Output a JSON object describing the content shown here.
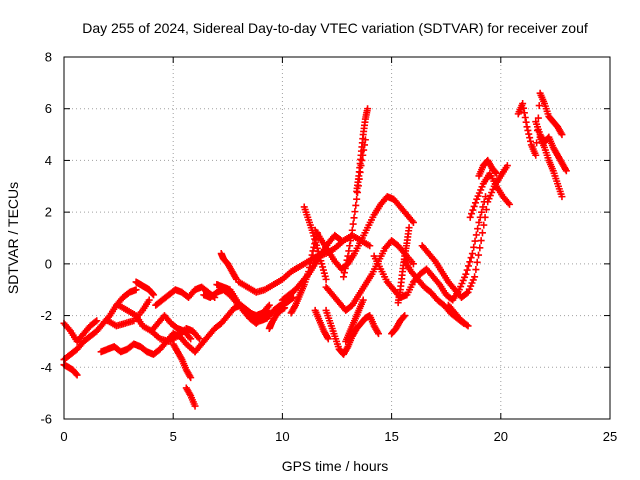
{
  "chart_data": {
    "type": "scatter",
    "title": "Day 255 of 2024, Sidereal Day-to-day VTEC variation (SDTVAR) for receiver zouf",
    "xlabel": "GPS time / hours",
    "ylabel": "SDTVAR / TECUs",
    "xlim": [
      0,
      25
    ],
    "ylim": [
      -6,
      8
    ],
    "xticks": [
      0,
      5,
      10,
      15,
      20,
      25
    ],
    "yticks": [
      -6,
      -4,
      -2,
      0,
      2,
      4,
      6,
      8
    ],
    "grid": true,
    "marker": "+",
    "color": "#ff0000",
    "series": [
      {
        "name": "trace-1",
        "x": [
          0,
          0.3,
          0.6,
          0.9,
          1.2,
          1.5
        ],
        "y": [
          -2.3,
          -2.6,
          -3.0,
          -2.7,
          -2.4,
          -2.2
        ]
      },
      {
        "name": "trace-2",
        "x": [
          0,
          0.3,
          0.6,
          0.9,
          1.2,
          1.5,
          1.8,
          2.1,
          2.4,
          2.7,
          3.0,
          3.3
        ],
        "y": [
          -3.7,
          -3.5,
          -3.3,
          -3.0,
          -2.8,
          -2.6,
          -2.3,
          -2.0,
          -1.6,
          -1.3,
          -1.1,
          -1.0
        ]
      },
      {
        "name": "trace-3",
        "x": [
          0,
          0.2,
          0.4,
          0.6
        ],
        "y": [
          -3.9,
          -4.0,
          -4.1,
          -4.3
        ]
      },
      {
        "name": "trace-4",
        "x": [
          1.7,
          2.0,
          2.3,
          2.6,
          2.9,
          3.2,
          3.5,
          3.8,
          4.1,
          4.4,
          4.7,
          5.0,
          5.3,
          5.6,
          6.0
        ],
        "y": [
          -3.4,
          -3.3,
          -3.2,
          -3.4,
          -3.3,
          -3.1,
          -3.2,
          -3.4,
          -3.5,
          -3.3,
          -3.0,
          -2.7,
          -2.8,
          -3.1,
          -3.4
        ]
      },
      {
        "name": "trace-5",
        "x": [
          2.0,
          2.4,
          2.8,
          3.2,
          3.6,
          3.9
        ],
        "y": [
          -2.2,
          -2.4,
          -2.3,
          -2.2,
          -1.8,
          -1.4
        ]
      },
      {
        "name": "trace-6",
        "x": [
          2.5,
          2.9,
          3.3,
          3.6,
          4.0,
          4.4,
          4.8,
          5.2,
          5.6,
          5.9,
          6.2
        ],
        "y": [
          -1.6,
          -1.8,
          -2.0,
          -2.4,
          -2.6,
          -2.9,
          -3.0,
          -2.8,
          -2.5,
          -2.6,
          -2.9
        ]
      },
      {
        "name": "trace-7",
        "x": [
          3.3,
          3.5,
          3.7,
          3.9,
          4.1
        ],
        "y": [
          -0.7,
          -0.8,
          -0.9,
          -1.0,
          -1.2
        ]
      },
      {
        "name": "trace-8",
        "x": [
          4.0,
          4.3,
          4.6,
          4.9,
          5.2,
          5.5,
          5.8
        ],
        "y": [
          -2.6,
          -2.3,
          -2.0,
          -2.3,
          -2.5,
          -2.6,
          -2.9
        ]
      },
      {
        "name": "trace-9",
        "x": [
          4.2,
          4.5,
          4.8,
          5.1,
          5.4,
          5.7,
          6.0,
          6.3,
          6.6,
          6.9
        ],
        "y": [
          -1.6,
          -1.4,
          -1.2,
          -1.0,
          -1.1,
          -1.3,
          -1.0,
          -0.9,
          -1.1,
          -1.3
        ]
      },
      {
        "name": "trace-10",
        "x": [
          5.0,
          5.2,
          5.4,
          5.6,
          5.8
        ],
        "y": [
          -3.1,
          -3.4,
          -3.7,
          -4.1,
          -4.4
        ]
      },
      {
        "name": "trace-11",
        "x": [
          5.6,
          5.8,
          6.0
        ],
        "y": [
          -4.8,
          -5.1,
          -5.5
        ]
      },
      {
        "name": "trace-12",
        "x": [
          6.0,
          6.3,
          6.6,
          6.9,
          7.2,
          7.5,
          7.8,
          8.1,
          8.4,
          8.7,
          9.0,
          9.3,
          9.6,
          9.9,
          10.2,
          10.5
        ],
        "y": [
          -3.4,
          -3.1,
          -2.8,
          -2.5,
          -2.3,
          -2.0,
          -1.7,
          -1.6,
          -1.8,
          -2.0,
          -2.2,
          -2.1,
          -1.8,
          -1.6,
          -1.5,
          -1.3
        ]
      },
      {
        "name": "trace-13",
        "x": [
          6.4,
          6.7,
          7.0,
          7.3,
          7.6,
          7.9,
          8.2,
          8.5,
          8.8,
          9.1,
          9.4
        ],
        "y": [
          -1.2,
          -1.3,
          -1.1,
          -1.0,
          -1.2,
          -1.5,
          -1.7,
          -1.9,
          -2.0,
          -1.9,
          -1.6
        ]
      },
      {
        "name": "trace-14",
        "x": [
          7.0,
          7.3,
          7.6,
          7.9,
          8.2,
          8.5,
          8.8,
          9.1,
          9.4
        ],
        "y": [
          -0.8,
          -0.9,
          -1.0,
          -1.4,
          -1.8,
          -2.1,
          -2.3,
          -2.1,
          -1.9
        ]
      },
      {
        "name": "trace-15",
        "x": [
          7.2,
          7.3,
          7.5,
          7.7,
          7.9
        ],
        "y": [
          0.4,
          0.2,
          0.0,
          -0.3,
          -0.6
        ]
      },
      {
        "name": "trace-16",
        "x": [
          8.0,
          8.4,
          8.8,
          9.2,
          9.6,
          10.0,
          10.4,
          10.8,
          11.2,
          11.6,
          12.0,
          12.4,
          12.8,
          13.2,
          13.6,
          14.0
        ],
        "y": [
          -0.7,
          -0.9,
          -1.1,
          -1.0,
          -0.8,
          -0.6,
          -0.3,
          -0.1,
          0.1,
          0.3,
          0.4,
          0.6,
          0.9,
          1.1,
          0.9,
          0.7
        ]
      },
      {
        "name": "trace-17",
        "x": [
          9.4,
          9.5,
          9.7,
          9.9,
          10.1
        ],
        "y": [
          -2.5,
          -2.3,
          -2.0,
          -1.8,
          -1.7
        ]
      },
      {
        "name": "trace-18",
        "x": [
          10.0,
          10.3,
          10.6,
          10.9,
          11.2,
          11.5,
          11.8,
          12.1,
          12.4,
          12.7
        ],
        "y": [
          -1.4,
          -1.2,
          -1.0,
          -0.7,
          -0.4,
          0.0,
          0.4,
          0.8,
          1.1,
          0.9
        ]
      },
      {
        "name": "trace-19",
        "x": [
          10.4,
          10.6,
          10.8,
          11.0,
          11.2,
          11.4,
          11.6
        ],
        "y": [
          -1.9,
          -1.6,
          -1.2,
          -0.8,
          -0.3,
          0.5,
          1.2
        ]
      },
      {
        "name": "trace-20",
        "x": [
          11.0,
          11.2,
          11.4,
          11.6,
          11.8,
          12.0
        ],
        "y": [
          2.2,
          1.7,
          1.2,
          0.6,
          0.0,
          -0.6
        ]
      },
      {
        "name": "trace-21",
        "x": [
          11.5,
          11.8,
          12.1,
          12.4,
          12.7,
          13.0,
          13.3,
          13.6,
          13.9,
          14.2,
          14.5,
          14.8,
          15.1,
          15.4,
          15.7,
          16.0
        ],
        "y": [
          1.3,
          0.9,
          0.5,
          0.1,
          -0.2,
          0.0,
          0.4,
          0.9,
          1.4,
          1.9,
          2.3,
          2.6,
          2.5,
          2.2,
          1.9,
          1.6
        ]
      },
      {
        "name": "trace-22",
        "x": [
          12.0,
          12.3,
          12.6,
          12.9,
          13.2,
          13.5,
          13.8,
          14.1,
          14.4,
          14.7,
          15.0,
          15.3,
          15.6,
          16.0
        ],
        "y": [
          -0.9,
          -1.2,
          -1.5,
          -1.8,
          -1.6,
          -1.2,
          -0.8,
          -0.4,
          0.1,
          0.6,
          0.9,
          0.7,
          0.4,
          0.0
        ]
      },
      {
        "name": "trace-23",
        "x": [
          11.5,
          11.7,
          11.9,
          12.1
        ],
        "y": [
          -1.8,
          -2.2,
          -2.6,
          -2.9
        ]
      },
      {
        "name": "trace-24",
        "x": [
          12.0,
          12.2,
          12.4,
          12.6,
          12.8,
          13.0,
          13.2,
          13.4,
          13.6,
          13.8,
          14.0,
          14.2,
          14.4
        ],
        "y": [
          -1.8,
          -2.3,
          -2.8,
          -3.3,
          -3.5,
          -3.2,
          -2.8,
          -2.5,
          -2.3,
          -2.1,
          -2.0,
          -2.4,
          -2.7
        ]
      },
      {
        "name": "trace-25",
        "x": [
          12.9,
          13.1,
          13.3,
          13.5,
          13.7
        ],
        "y": [
          -3.0,
          -2.6,
          -2.2,
          -1.8,
          -1.4
        ]
      },
      {
        "name": "trace-26",
        "x": [
          12.8,
          13.0,
          13.2,
          13.4,
          13.6,
          13.8
        ],
        "y": [
          -0.5,
          0.3,
          1.3,
          2.5,
          3.8,
          4.8
        ]
      },
      {
        "name": "trace-27",
        "x": [
          13.4,
          13.5,
          13.6,
          13.7,
          13.8,
          13.9
        ],
        "y": [
          2.8,
          3.4,
          4.2,
          5.0,
          5.6,
          6.0
        ]
      },
      {
        "name": "trace-28",
        "x": [
          14.2,
          14.5,
          14.8,
          15.1,
          15.4,
          15.7,
          16.0,
          16.3,
          16.6,
          16.9,
          17.2,
          17.5,
          17.8,
          18.1,
          18.4,
          18.7,
          19.0,
          19.3
        ],
        "y": [
          0.3,
          -0.2,
          -0.7,
          -1.0,
          -1.3,
          -1.2,
          -0.7,
          -0.4,
          -0.2,
          -0.5,
          -0.8,
          -1.2,
          -1.4,
          -1.0,
          -0.4,
          0.4,
          1.6,
          2.6
        ]
      },
      {
        "name": "trace-29",
        "x": [
          15.0,
          15.2,
          15.4,
          15.6
        ],
        "y": [
          -2.7,
          -2.5,
          -2.2,
          -2.0
        ]
      },
      {
        "name": "trace-30",
        "x": [
          15.3,
          15.4,
          15.5,
          15.6,
          15.7,
          15.8
        ],
        "y": [
          -1.5,
          -1.0,
          -0.3,
          0.3,
          0.8,
          1.4
        ]
      },
      {
        "name": "trace-31",
        "x": [
          15.6,
          15.9,
          16.2,
          16.5,
          16.8,
          17.1,
          17.4,
          17.7,
          18.0,
          18.3
        ],
        "y": [
          0.1,
          -0.3,
          -0.6,
          -0.9,
          -1.1,
          -1.4,
          -1.6,
          -1.9,
          -2.1,
          -2.3
        ]
      },
      {
        "name": "trace-32",
        "x": [
          16.4,
          16.7,
          17.0,
          17.3,
          17.6,
          17.9,
          18.2,
          18.5,
          18.8,
          19.1,
          19.4,
          19.7,
          20.0,
          20.3
        ],
        "y": [
          0.7,
          0.4,
          0.1,
          -0.3,
          -0.7,
          -1.0,
          -1.3,
          -1.1,
          -0.5,
          0.9,
          2.4,
          3.0,
          3.4,
          3.8
        ]
      },
      {
        "name": "trace-33",
        "x": [
          17.6,
          17.9,
          18.2,
          18.5
        ],
        "y": [
          -1.6,
          -1.9,
          -2.2,
          -2.4
        ]
      },
      {
        "name": "trace-34",
        "x": [
          18.6,
          18.9,
          19.2,
          19.5,
          19.8,
          20.1,
          20.4
        ],
        "y": [
          1.8,
          2.5,
          3.1,
          3.5,
          3.0,
          2.6,
          2.3
        ]
      },
      {
        "name": "trace-35",
        "x": [
          19.0,
          19.2,
          19.4,
          19.6,
          19.8
        ],
        "y": [
          3.4,
          3.8,
          4.0,
          3.7,
          3.5
        ]
      },
      {
        "name": "trace-36",
        "x": [
          20.8,
          21.0,
          21.2,
          21.4,
          21.6,
          21.8,
          22.0,
          22.2,
          22.4,
          22.6,
          22.8
        ],
        "y": [
          5.8,
          6.2,
          5.3,
          4.6,
          4.2,
          6.6,
          6.2,
          5.7,
          5.5,
          5.3,
          5.0
        ]
      },
      {
        "name": "trace-37",
        "x": [
          21.6,
          21.8,
          22.0,
          22.2,
          22.4,
          22.6,
          22.8,
          23.0
        ],
        "y": [
          5.5,
          5.0,
          4.7,
          4.9,
          4.5,
          4.2,
          3.9,
          3.6
        ]
      },
      {
        "name": "trace-38",
        "x": [
          21.8,
          22.0,
          22.2,
          22.4,
          22.6,
          22.8
        ],
        "y": [
          4.9,
          4.5,
          4.0,
          3.6,
          3.1,
          2.6
        ]
      }
    ]
  }
}
